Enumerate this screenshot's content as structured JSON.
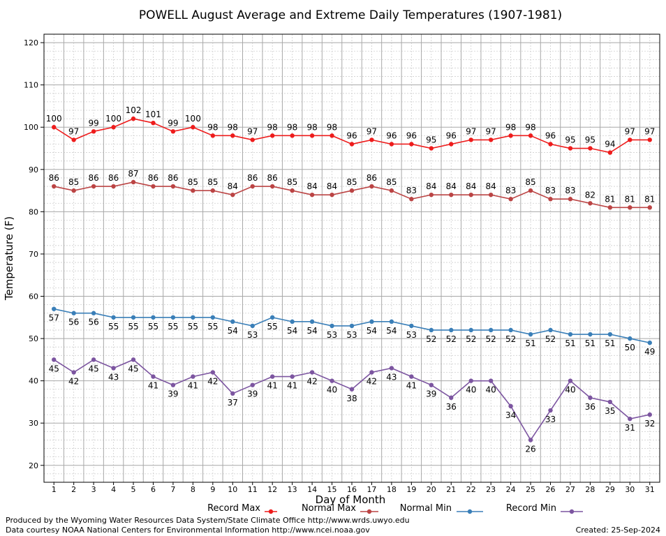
{
  "chart_data": {
    "type": "line",
    "title": "POWELL August Average and Extreme Daily Temperatures (1907-1981)",
    "xlabel": "Day of Month",
    "ylabel": "Temperature (F)",
    "x": [
      1,
      2,
      3,
      4,
      5,
      6,
      7,
      8,
      9,
      10,
      11,
      12,
      13,
      14,
      15,
      16,
      17,
      18,
      19,
      20,
      21,
      22,
      23,
      24,
      25,
      26,
      27,
      28,
      29,
      30,
      31
    ],
    "xlim": [
      0.5,
      31.5
    ],
    "ylim": [
      16,
      122
    ],
    "yticks": [
      20,
      30,
      40,
      50,
      60,
      70,
      80,
      90,
      100,
      110,
      120
    ],
    "grid": true,
    "legend_position": "bottom",
    "series": [
      {
        "name": "Record Max",
        "color": "#ee1c1c",
        "label_position": "above",
        "values": [
          100,
          97,
          99,
          100,
          102,
          101,
          99,
          100,
          98,
          98,
          97,
          98,
          98,
          98,
          98,
          96,
          97,
          96,
          96,
          95,
          96,
          97,
          97,
          98,
          98,
          96,
          95,
          95,
          94,
          97,
          97
        ]
      },
      {
        "name": "Normal Max",
        "color": "#bb4444",
        "label_position": "above",
        "values": [
          86,
          85,
          86,
          86,
          87,
          86,
          86,
          85,
          85,
          84,
          86,
          86,
          85,
          84,
          84,
          85,
          86,
          85,
          83,
          84,
          84,
          84,
          84,
          83,
          85,
          83,
          83,
          82,
          81,
          81,
          81
        ]
      },
      {
        "name": "Normal Min",
        "color": "#3a7fb8",
        "label_position": "below",
        "values": [
          57,
          56,
          56,
          55,
          55,
          55,
          55,
          55,
          55,
          54,
          53,
          55,
          54,
          54,
          53,
          53,
          54,
          54,
          53,
          52,
          52,
          52,
          52,
          52,
          51,
          52,
          51,
          51,
          51,
          50,
          49
        ]
      },
      {
        "name": "Record Min",
        "color": "#7c55a0",
        "label_position": "below",
        "values": [
          45,
          42,
          45,
          43,
          45,
          41,
          39,
          41,
          42,
          37,
          39,
          41,
          41,
          42,
          40,
          38,
          42,
          43,
          41,
          39,
          36,
          40,
          40,
          34,
          26,
          33,
          40,
          36,
          35,
          31,
          32
        ]
      }
    ]
  },
  "footer": {
    "line1": "Produced by the Wyoming Water Resources Data System/State Climate Office http://www.wrds.uwyo.edu",
    "line2": "Data courtesy NOAA National Centers for Environmental Information http://www.ncei.noaa.gov",
    "created": "Created: 25-Sep-2024"
  }
}
